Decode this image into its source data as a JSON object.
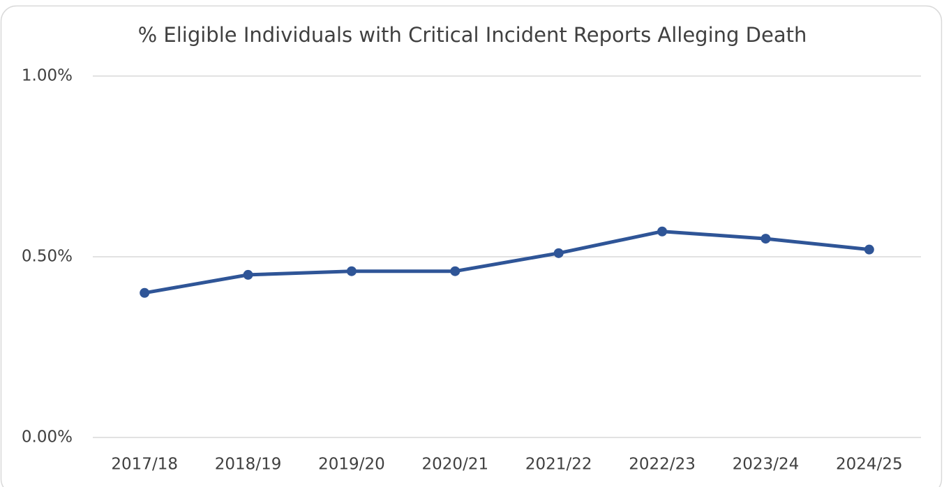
{
  "chart_data": {
    "type": "line",
    "title": "% Eligible Individuals with Critical Incident Reports Alleging Death",
    "categories": [
      "2017/18",
      "2018/19",
      "2019/20",
      "2020/21",
      "2021/22",
      "2022/23",
      "2023/24",
      "2024/25"
    ],
    "values": [
      0.4,
      0.45,
      0.46,
      0.46,
      0.51,
      0.57,
      0.55,
      0.52
    ],
    "color": "#2f5597",
    "ylim": [
      0,
      1
    ],
    "yticks": [
      {
        "value": 0,
        "label": "0.00%"
      },
      {
        "value": 0.5,
        "label": "0.50%"
      },
      {
        "value": 1,
        "label": "1.00%"
      }
    ],
    "grid": true
  }
}
